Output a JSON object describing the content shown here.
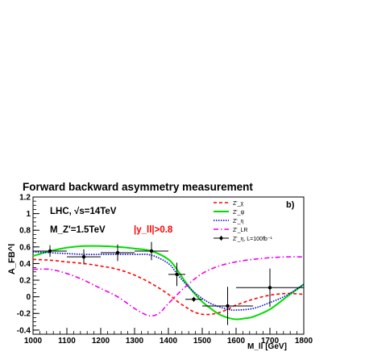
{
  "chart_data": {
    "type": "line",
    "title": "Forward backward asymmetry measurement",
    "panel_label": "b)",
    "xlabel": "M_ll [GeV]",
    "ylabel": "A_FB^l",
    "xlim": [
      1000,
      1800
    ],
    "ylim": [
      -0.45,
      1.2
    ],
    "xticks": [
      1000,
      1100,
      1200,
      1300,
      1400,
      1500,
      1600,
      1700,
      1800
    ],
    "yticks": [
      -0.4,
      -0.2,
      0,
      0.2,
      0.4,
      0.6,
      0.8,
      1,
      1.2
    ],
    "grid": false,
    "legend_position": "top-right",
    "annotations": {
      "lhc": "LHC, √s=14TeV",
      "mass": "M_Z'=1.5TeV",
      "cut": "|y_ll|>0.8"
    },
    "series": [
      {
        "name": "Z'_χ",
        "color": "#ff0000",
        "style": "dashed",
        "x": [
          1000,
          1050,
          1100,
          1150,
          1200,
          1250,
          1300,
          1350,
          1400,
          1425,
          1450,
          1475,
          1500,
          1525,
          1550,
          1575,
          1600,
          1650,
          1700,
          1750,
          1800
        ],
        "y": [
          0.45,
          0.44,
          0.42,
          0.4,
          0.37,
          0.33,
          0.26,
          0.16,
          0.03,
          -0.05,
          -0.12,
          -0.18,
          -0.21,
          -0.21,
          -0.19,
          -0.15,
          -0.1,
          -0.03,
          0.02,
          0.04,
          0.03
        ]
      },
      {
        "name": "Z'_ψ",
        "color": "#00dd00",
        "style": "solid",
        "x": [
          1000,
          1050,
          1100,
          1150,
          1200,
          1250,
          1300,
          1350,
          1400,
          1425,
          1450,
          1475,
          1500,
          1525,
          1550,
          1575,
          1600,
          1625,
          1650,
          1700,
          1750,
          1800
        ],
        "y": [
          0.49,
          0.55,
          0.59,
          0.61,
          0.61,
          0.6,
          0.58,
          0.55,
          0.45,
          0.33,
          0.18,
          0.05,
          -0.06,
          -0.14,
          -0.21,
          -0.25,
          -0.27,
          -0.26,
          -0.24,
          -0.15,
          0.0,
          0.15
        ]
      },
      {
        "name": "Z'_η",
        "color": "#0000cc",
        "style": "dotted",
        "x": [
          1000,
          1050,
          1100,
          1150,
          1200,
          1250,
          1300,
          1350,
          1400,
          1425,
          1450,
          1475,
          1500,
          1525,
          1550,
          1575,
          1600,
          1650,
          1700,
          1750,
          1800
        ],
        "y": [
          0.54,
          0.53,
          0.52,
          0.51,
          0.51,
          0.51,
          0.51,
          0.5,
          0.4,
          0.28,
          0.16,
          0.06,
          -0.02,
          -0.08,
          -0.12,
          -0.15,
          -0.16,
          -0.14,
          -0.07,
          0.02,
          0.15
        ]
      },
      {
        "name": "Z'_LR",
        "color": "#ee00ee",
        "style": "dashdot",
        "x": [
          1000,
          1050,
          1100,
          1150,
          1200,
          1250,
          1300,
          1325,
          1350,
          1375,
          1400,
          1450,
          1500,
          1550,
          1600,
          1650,
          1700,
          1750,
          1800
        ],
        "y": [
          0.33,
          0.33,
          0.28,
          0.2,
          0.1,
          0.0,
          -0.14,
          -0.2,
          -0.23,
          -0.19,
          -0.08,
          0.12,
          0.28,
          0.37,
          0.42,
          0.45,
          0.47,
          0.48,
          0.48
        ]
      }
    ],
    "data_points": {
      "name": "Z'_η, L=100fb⁻¹",
      "color": "#000000",
      "points": [
        {
          "x": 1050,
          "y": 0.55,
          "xerr": 50,
          "yerr": 0.07
        },
        {
          "x": 1150,
          "y": 0.48,
          "xerr": 50,
          "yerr": 0.09
        },
        {
          "x": 1250,
          "y": 0.53,
          "xerr": 50,
          "yerr": 0.1
        },
        {
          "x": 1350,
          "y": 0.55,
          "xerr": 50,
          "yerr": 0.11
        },
        {
          "x": 1425,
          "y": 0.27,
          "xerr": 25,
          "yerr": 0.14
        },
        {
          "x": 1475,
          "y": -0.03,
          "xerr": 25,
          "yerr": 0.03
        },
        {
          "x": 1575,
          "y": -0.11,
          "xerr": 75,
          "yerr": 0.23
        },
        {
          "x": 1700,
          "y": 0.11,
          "xerr": 100,
          "yerr": 0.23
        }
      ]
    }
  }
}
